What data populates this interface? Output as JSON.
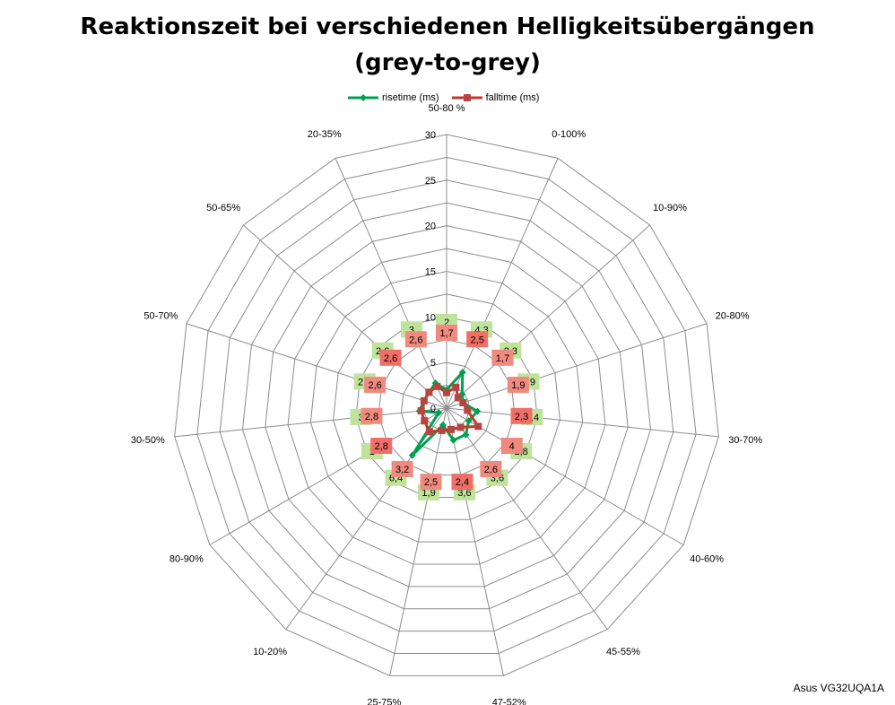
{
  "chart_data": {
    "type": "radar",
    "title_lines": [
      "Reaktionszeit bei verschiedenen Helligkeitsübergängen",
      "(grey-to-grey)"
    ],
    "categories": [
      "50-80 %",
      "0-100%",
      "10-90%",
      "20-80%",
      "30-70%",
      "40-60%",
      "45-55%",
      "47-52%",
      "25-75%",
      "10-20%",
      "80-90%",
      "30-50%",
      "50-70%",
      "50-65%",
      "20-35%"
    ],
    "value_labels": [
      "2",
      "4,3",
      "2,3",
      "1,9",
      "3,4",
      "2,8",
      "3,6",
      "3,6",
      "1,9",
      "6,4",
      "1",
      "3",
      "2,6",
      "2,6",
      "3"
    ],
    "fall_labels": [
      "1,7",
      "2,5",
      "1,7",
      "1,9",
      "2,3",
      "4",
      "2,6",
      "2,4",
      "2,5",
      "3,2",
      "2,8",
      "2,8",
      "2,6",
      "2,6",
      "2,6"
    ],
    "rlim": [
      0,
      30
    ],
    "ticks": [
      "0",
      "5",
      "10",
      "15",
      "20",
      "25",
      "30"
    ],
    "series": [
      {
        "name": "risetime (ms)",
        "color": "#00A050",
        "marker": "diamond",
        "values": [
          2,
          4.3,
          2.3,
          1.9,
          3.4,
          2.8,
          3.6,
          3.6,
          1.9,
          6.4,
          1,
          3,
          2.6,
          2.6,
          3
        ]
      },
      {
        "name": "falltime (ms)",
        "color": "#C0392B",
        "marker": "square",
        "values": [
          1.7,
          2.5,
          1.7,
          1.9,
          2.3,
          4,
          2.6,
          2.4,
          2.5,
          3.2,
          2.8,
          2.8,
          2.6,
          2.6,
          2.6
        ]
      }
    ],
    "legend_position": "top",
    "grid": true
  },
  "footer": {
    "watermark": "Asus VG32UQA1A"
  }
}
